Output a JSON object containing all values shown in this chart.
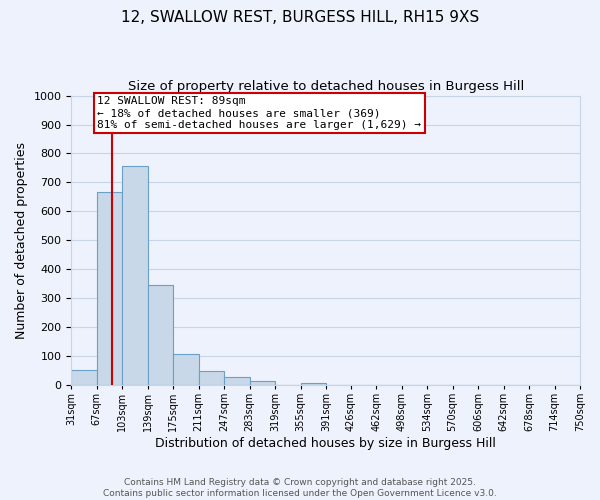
{
  "title": "12, SWALLOW REST, BURGESS HILL, RH15 9XS",
  "subtitle": "Size of property relative to detached houses in Burgess Hill",
  "xlabel": "Distribution of detached houses by size in Burgess Hill",
  "ylabel": "Number of detached properties",
  "bar_values": [
    52,
    667,
    757,
    347,
    108,
    50,
    28,
    13,
    0,
    8,
    0,
    0,
    0,
    0,
    0,
    0,
    0,
    0,
    0,
    0
  ],
  "bin_edges": [
    31,
    67,
    103,
    139,
    175,
    211,
    247,
    283,
    319,
    355,
    391,
    426,
    462,
    498,
    534,
    570,
    606,
    642,
    678,
    714,
    750
  ],
  "tick_labels": [
    "31sqm",
    "67sqm",
    "103sqm",
    "139sqm",
    "175sqm",
    "211sqm",
    "247sqm",
    "283sqm",
    "319sqm",
    "355sqm",
    "391sqm",
    "426sqm",
    "462sqm",
    "498sqm",
    "534sqm",
    "570sqm",
    "606sqm",
    "642sqm",
    "678sqm",
    "714sqm",
    "750sqm"
  ],
  "bar_color": "#c8d8e8",
  "bar_edge_color": "#6aa0c8",
  "property_line_x": 89,
  "property_line_color": "#cc0000",
  "annotation_text_line1": "12 SWALLOW REST: 89sqm",
  "annotation_text_line2": "← 18% of detached houses are smaller (369)",
  "annotation_text_line3": "81% of semi-detached houses are larger (1,629) →",
  "annotation_box_color": "#ffffff",
  "annotation_box_edge_color": "#cc0000",
  "ylim": [
    0,
    1000
  ],
  "yticks": [
    0,
    100,
    200,
    300,
    400,
    500,
    600,
    700,
    800,
    900,
    1000
  ],
  "grid_color": "#c8d4e8",
  "background_color": "#eef2fc",
  "footer1": "Contains HM Land Registry data © Crown copyright and database right 2025.",
  "footer2": "Contains public sector information licensed under the Open Government Licence v3.0.",
  "title_fontsize": 11,
  "subtitle_fontsize": 9.5,
  "xlabel_fontsize": 9,
  "ylabel_fontsize": 9,
  "annotation_fontsize": 8,
  "footer_fontsize": 6.5,
  "tick_fontsize": 7
}
